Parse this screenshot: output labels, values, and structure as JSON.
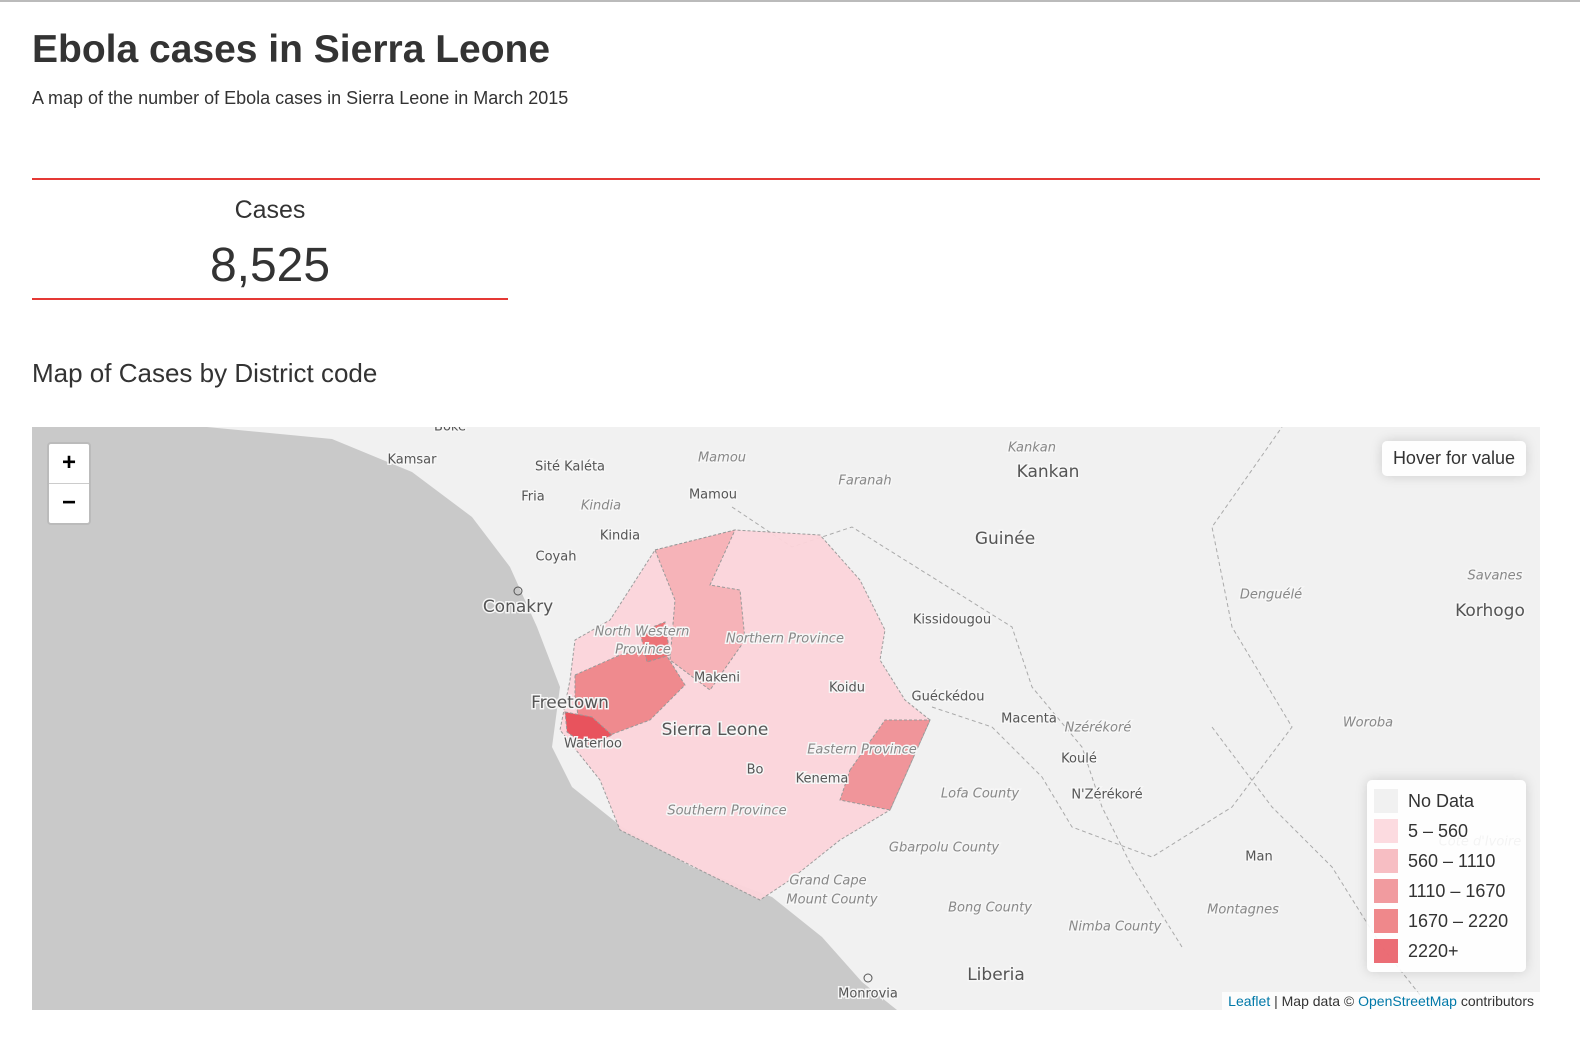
{
  "header": {
    "title": "Ebola cases in Sierra Leone",
    "subtitle": "A map of the number of Ebola cases in Sierra Leone in March 2015"
  },
  "kpi": {
    "label": "Cases",
    "value": "8,525"
  },
  "map": {
    "title": "Map of Cases by District code",
    "zoom_in": "+",
    "zoom_out": "−",
    "info": "Hover for value",
    "legend": [
      {
        "label": "No Data",
        "color": "#eeeeee"
      },
      {
        "label": "5 – 560",
        "color": "#fcd5db"
      },
      {
        "label": "560 – 1110",
        "color": "#f6b3b8"
      },
      {
        "label": "1110 – 1670",
        "color": "#ef8a8e"
      },
      {
        "label": "1670 – 2220",
        "color": "#ec7377"
      },
      {
        "label": "2220+",
        "color": "#e8535d"
      }
    ],
    "attribution": {
      "leaflet": "Leaflet",
      "middle": " | Map data © ",
      "osm": "OpenStreetMap",
      "end": " contributors"
    },
    "places": [
      "Boke",
      "Kamsar",
      "Sité Kaléta",
      "Fria",
      "Mamou",
      "Mamou",
      "Kindia",
      "Kindia",
      "Coyah",
      "Conakry",
      "Faranah",
      "Kankan",
      "Kankan",
      "Guinée",
      "Kissidougou",
      "Guéckédou",
      "Macenta",
      "Nzérékoré",
      "Koulé",
      "N'Zérékoré",
      "Freetown",
      "Waterloo",
      "North Western",
      "Province",
      "Northern Province",
      "Makeni",
      "Koidu",
      "Sierra Leone",
      "Eastern Province",
      "Bo",
      "Kenema",
      "Southern Province",
      "Lofa County",
      "Gbarpolu County",
      "Grand Cape",
      "Mount County",
      "Bong County",
      "Nimba County",
      "Liberia",
      "Monrovia",
      "Denguélé",
      "Savanes",
      "Korhogo",
      "Woroba",
      "Man",
      "Montagnes",
      "Côte d'Ivoire"
    ]
  }
}
